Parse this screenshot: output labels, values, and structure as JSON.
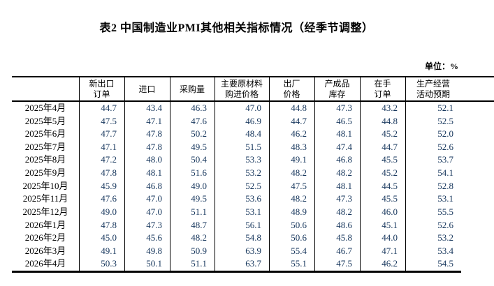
{
  "title": "表2 中国制造业PMI其他相关指标情况（经季节调整）",
  "unit_label": "单位：%",
  "colors": {
    "number_text": "#16365c",
    "rule": "#000000",
    "title_text": "#000000"
  },
  "table": {
    "headers": [
      "",
      "新出口\n订单",
      "进口",
      "采购量",
      "主要原材料\n购进价格",
      "出厂\n价格",
      "产成品\n库存",
      "在手\n订单",
      "生产经营\n活动预期"
    ],
    "rows": [
      {
        "label": "2025年4月",
        "values": [
          "44.7",
          "43.4",
          "46.3",
          "47.0",
          "44.8",
          "47.3",
          "43.2",
          "52.1"
        ]
      },
      {
        "label": "2025年5月",
        "values": [
          "47.5",
          "47.1",
          "47.6",
          "46.9",
          "44.7",
          "46.5",
          "44.8",
          "52.5"
        ]
      },
      {
        "label": "2025年6月",
        "values": [
          "47.7",
          "47.8",
          "50.2",
          "48.4",
          "46.2",
          "48.1",
          "45.2",
          "52.0"
        ]
      },
      {
        "label": "2025年7月",
        "values": [
          "47.1",
          "47.8",
          "49.5",
          "51.5",
          "48.3",
          "47.4",
          "44.7",
          "52.6"
        ]
      },
      {
        "label": "2025年8月",
        "values": [
          "47.2",
          "48.0",
          "50.4",
          "53.3",
          "49.1",
          "46.8",
          "45.5",
          "53.7"
        ]
      },
      {
        "label": "2025年9月",
        "values": [
          "47.8",
          "48.1",
          "51.6",
          "53.2",
          "48.2",
          "48.2",
          "45.2",
          "54.1"
        ]
      },
      {
        "label": "2025年10月",
        "values": [
          "45.9",
          "46.8",
          "49.0",
          "52.5",
          "47.5",
          "48.1",
          "44.5",
          "52.8"
        ]
      },
      {
        "label": "2025年11月",
        "values": [
          "47.6",
          "47.0",
          "49.5",
          "53.6",
          "48.2",
          "47.3",
          "45.5",
          "53.1"
        ]
      },
      {
        "label": "2025年12月",
        "values": [
          "49.0",
          "47.0",
          "51.1",
          "53.1",
          "48.9",
          "48.2",
          "46.0",
          "55.5"
        ]
      },
      {
        "label": "2026年1月",
        "values": [
          "47.8",
          "47.3",
          "48.7",
          "56.1",
          "50.6",
          "48.6",
          "45.1",
          "52.6"
        ]
      },
      {
        "label": "2026年2月",
        "values": [
          "45.0",
          "45.6",
          "48.2",
          "54.8",
          "50.6",
          "45.8",
          "44.0",
          "53.2"
        ]
      },
      {
        "label": "2026年3月",
        "values": [
          "49.1",
          "49.8",
          "50.9",
          "63.9",
          "55.4",
          "46.7",
          "47.1",
          "53.4"
        ]
      },
      {
        "label": "2026年4月",
        "values": [
          "50.3",
          "50.1",
          "51.1",
          "63.7",
          "55.1",
          "47.5",
          "46.2",
          "54.5"
        ]
      }
    ]
  }
}
